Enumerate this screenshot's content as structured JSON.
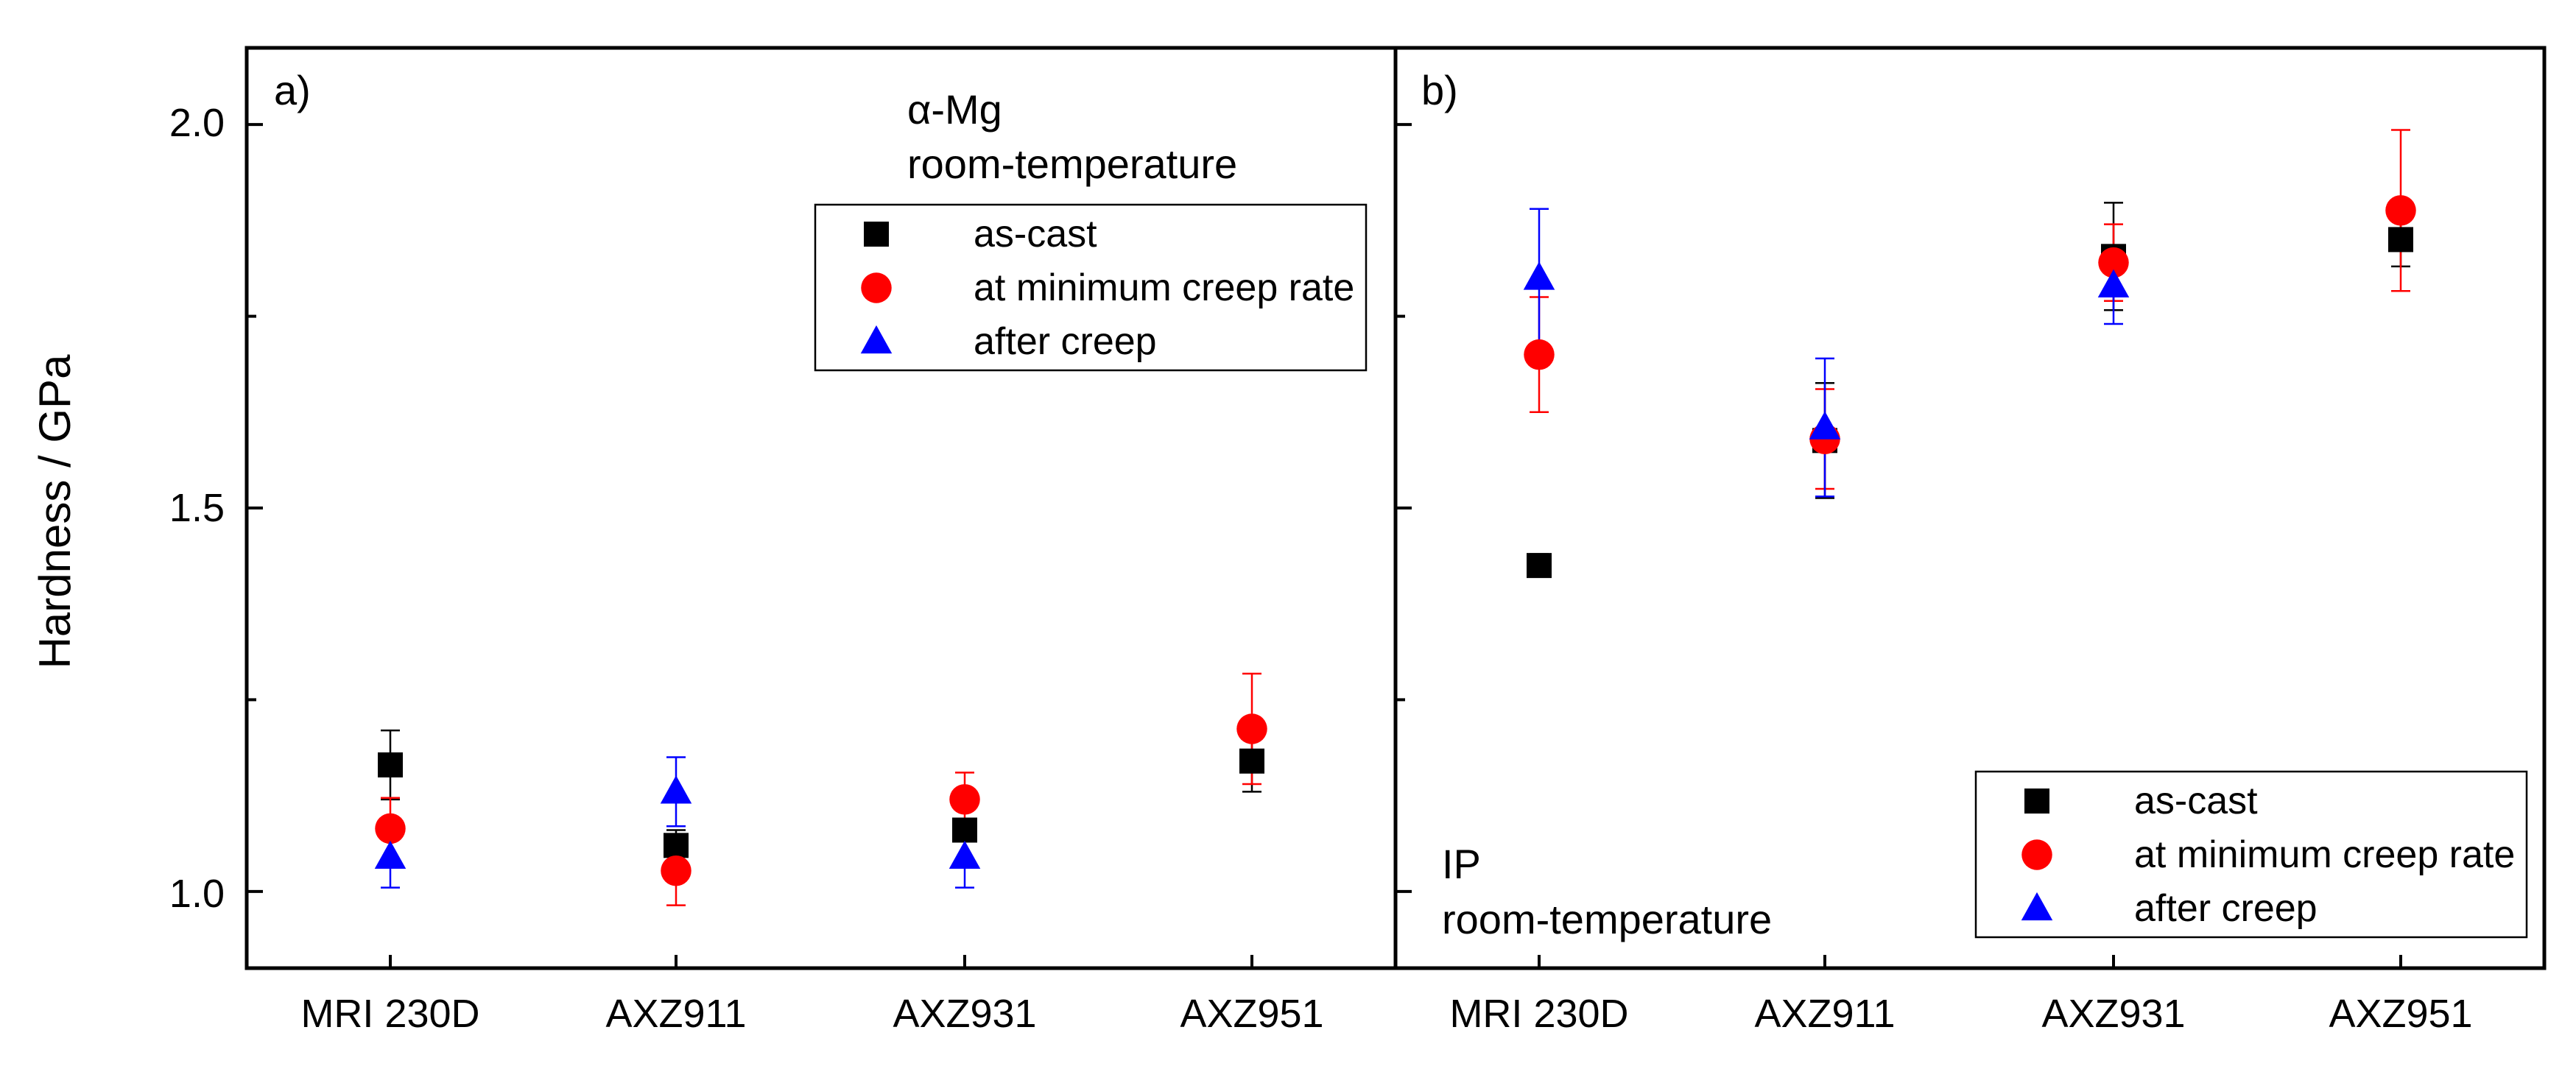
{
  "chart_data": [
    {
      "type": "scatter",
      "panel_label": "a)",
      "annotation": [
        "α-Mg",
        "room-temperature"
      ],
      "ylabel": "Hardness / GPa",
      "ylim": [
        0.9,
        2.1
      ],
      "yticks": [
        1.0,
        1.5,
        2.0
      ],
      "yticks_label": [
        "1.0",
        "1.5",
        "2.0"
      ],
      "categories": [
        "MRI 230D",
        "AXZ911",
        "AXZ931",
        "AXZ951"
      ],
      "legend_position": "top-right",
      "series": [
        {
          "name": "as-cast",
          "marker": "square",
          "color": "#000000",
          "values": [
            1.165,
            1.06,
            1.08,
            1.17
          ],
          "errors": [
            0.045,
            0.02,
            0.015,
            0.04
          ]
        },
        {
          "name": "at minimum creep rate",
          "marker": "circle",
          "color": "#ff0000",
          "values": [
            1.082,
            1.027,
            1.12,
            1.212
          ],
          "errors": [
            0.04,
            0.045,
            0.035,
            0.072
          ]
        },
        {
          "name": "after creep",
          "marker": "triangle",
          "color": "#0000ff",
          "values": [
            1.045,
            1.13,
            1.045,
            null
          ],
          "errors": [
            0.04,
            0.045,
            0.04,
            null
          ]
        }
      ]
    },
    {
      "type": "scatter",
      "panel_label": "b)",
      "annotation": [
        "IP",
        "room-temperature"
      ],
      "ylim": [
        0.9,
        2.1
      ],
      "yticks": [
        1.0,
        1.5,
        2.0
      ],
      "categories": [
        "MRI 230D",
        "AXZ911",
        "AXZ931",
        "AXZ951"
      ],
      "legend_position": "bottom-right",
      "series": [
        {
          "name": "as-cast",
          "marker": "square",
          "color": "#000000",
          "values": [
            1.425,
            1.588,
            1.828,
            1.85
          ],
          "errors": [
            0.015,
            0.075,
            0.07,
            0.035
          ]
        },
        {
          "name": "at minimum creep rate",
          "marker": "circle",
          "color": "#ff0000",
          "values": [
            1.7,
            1.59,
            1.82,
            1.888
          ],
          "errors": [
            0.075,
            0.065,
            0.05,
            0.105
          ]
        },
        {
          "name": "after creep",
          "marker": "triangle",
          "color": "#0000ff",
          "values": [
            1.8,
            1.605,
            1.79,
            null
          ],
          "errors": [
            0.09,
            0.09,
            0.05,
            null
          ]
        }
      ]
    }
  ]
}
